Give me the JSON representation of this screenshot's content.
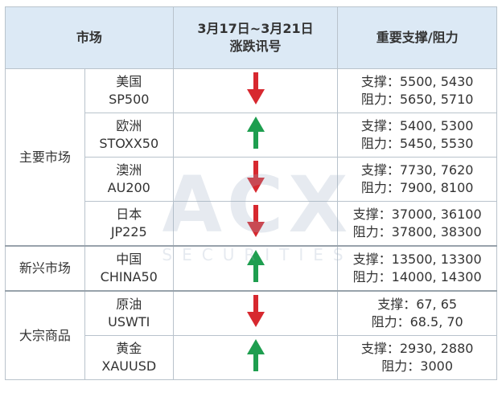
{
  "header": {
    "market": "市场",
    "signal": [
      "3月17日~3月21日",
      "涨跌讯号"
    ],
    "levels": "重要支撑/阻力"
  },
  "groups": [
    {
      "name": "主要市场",
      "rows": [
        {
          "market": [
            "美国",
            "SP500"
          ],
          "support": "支撑：5500, 5430",
          "resistance": "阻力：5650, 5710"
        },
        {
          "market": [
            "欧洲",
            "STOXX50"
          ],
          "support": "支撑：5400, 5300",
          "resistance": "阻力：5450, 5530"
        },
        {
          "market": [
            "澳洲",
            "AU200"
          ],
          "support": "支撑：7730, 7620",
          "resistance": "阻力：7900, 8100"
        },
        {
          "market": [
            "日本",
            "JP225"
          ],
          "support": "支撑：37000, 36100",
          "resistance": "阻力：37800, 38300"
        }
      ]
    },
    {
      "name": "新兴市场",
      "rows": [
        {
          "market": [
            "中国",
            "CHINA50"
          ],
          "support": "支撑：13500, 13300",
          "resistance": "阻力：14000, 14300"
        }
      ]
    },
    {
      "name": "大宗商品",
      "rows": [
        {
          "market": [
            "原油",
            "USWTI"
          ],
          "support": "支撑：67, 65",
          "resistance": "阻力：68.5, 70"
        },
        {
          "market": [
            "黄金",
            "XAUUSD"
          ],
          "support": "支撑：2930, 2880",
          "resistance": "阻力：3000"
        }
      ]
    }
  ],
  "watermark": {
    "logo": "ACX",
    "text": "SECURITIES"
  }
}
